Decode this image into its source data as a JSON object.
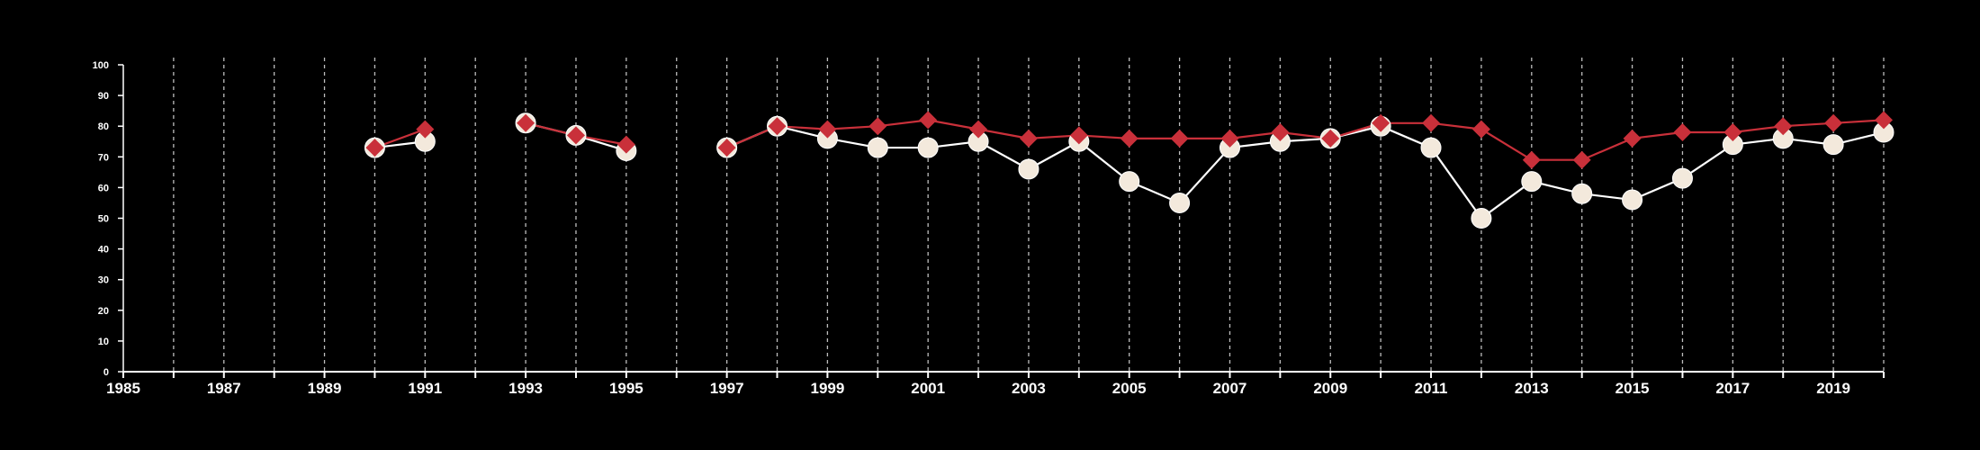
{
  "chart_data": {
    "type": "line",
    "title": "",
    "xlabel": "",
    "ylabel": "",
    "xlim": [
      1985,
      2020
    ],
    "ylim": [
      0,
      100
    ],
    "x_ticks": [
      1985,
      1987,
      1989,
      1991,
      1993,
      1995,
      1997,
      1999,
      2001,
      2003,
      2005,
      2007,
      2009,
      2011,
      2013,
      2015,
      2017,
      2019
    ],
    "y_ticks": [
      0,
      10,
      20,
      30,
      40,
      50,
      60,
      70,
      80,
      90,
      100
    ],
    "x_tick_labels": [
      "1985",
      "1987",
      "1989",
      "1991",
      "1993",
      "1995",
      "1997",
      "1999",
      "2001",
      "2003",
      "2005",
      "2007",
      "2009",
      "2011",
      "2013",
      "2015",
      "2017",
      "2019"
    ],
    "y_tick_labels": [
      "0",
      "10",
      "20",
      "30",
      "40",
      "50",
      "60",
      "70",
      "80",
      "90",
      "100"
    ],
    "grid": "vertical dashed lines at every year",
    "legend": "none",
    "x": [
      1985,
      1986,
      1987,
      1988,
      1989,
      1990,
      1991,
      1992,
      1993,
      1994,
      1995,
      1996,
      1997,
      1998,
      1999,
      2000,
      2001,
      2002,
      2003,
      2004,
      2005,
      2006,
      2007,
      2008,
      2009,
      2010,
      2011,
      2012,
      2013,
      2014,
      2015,
      2016,
      2017,
      2018,
      2019,
      2020
    ],
    "series": [
      {
        "marker": "circle",
        "color": "#ffffff",
        "marker_fill": "#f3e9dc",
        "values": [
          null,
          null,
          null,
          null,
          null,
          73,
          75,
          null,
          81,
          77,
          72,
          null,
          73,
          80,
          76,
          73,
          73,
          75,
          66,
          75,
          62,
          55,
          73,
          75,
          76,
          80,
          73,
          50,
          62,
          58,
          56,
          63,
          74,
          76,
          74,
          78
        ]
      },
      {
        "marker": "diamond",
        "color": "#c9303a",
        "marker_fill": "#c9303a",
        "values": [
          null,
          null,
          null,
          null,
          null,
          73,
          79,
          null,
          81,
          77,
          74,
          null,
          73,
          80,
          79,
          80,
          82,
          79,
          76,
          77,
          76,
          76,
          76,
          78,
          76,
          81,
          81,
          79,
          69,
          69,
          76,
          78,
          78,
          80,
          81,
          82
        ]
      }
    ]
  }
}
